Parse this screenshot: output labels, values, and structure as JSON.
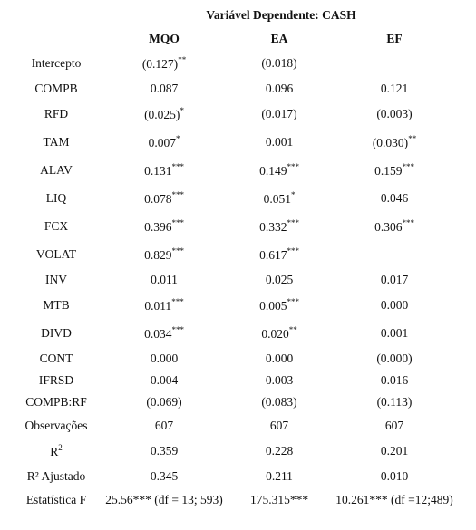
{
  "table": {
    "title": "Variável Dependente: CASH",
    "columns": [
      "MQO",
      "EA",
      "EF"
    ],
    "rows": [
      {
        "label": "Intercepto",
        "cells": [
          {
            "text": "(0.127)",
            "sup": "**"
          },
          "(0.018)",
          null
        ]
      },
      {
        "label": "COMPB",
        "cells": [
          "0.087",
          "0.096",
          "0.121"
        ]
      },
      {
        "label": "RFD",
        "cells": [
          {
            "text": "(0.025)",
            "sup": "*"
          },
          "(0.017)",
          "(0.003)"
        ]
      },
      {
        "label": "TAM",
        "cells": [
          {
            "text": "0.007",
            "sup": "*"
          },
          "0.001",
          {
            "text": "(0.030)",
            "sup": "**"
          }
        ]
      },
      {
        "label": "ALAV",
        "cells": [
          {
            "text": "0.131",
            "sup": "***"
          },
          {
            "text": "0.149",
            "sup": "***"
          },
          {
            "text": "0.159",
            "sup": "***"
          }
        ]
      },
      {
        "label": "LIQ",
        "cells": [
          {
            "text": "0.078",
            "sup": "***"
          },
          {
            "text": "0.051",
            "sup": "*"
          },
          "0.046"
        ]
      },
      {
        "label": "FCX",
        "cells": [
          {
            "text": "0.396",
            "sup": "***"
          },
          {
            "text": "0.332",
            "sup": "***"
          },
          {
            "text": "0.306",
            "sup": "***"
          }
        ]
      },
      {
        "label": "VOLAT",
        "cells": [
          {
            "text": "0.829",
            "sup": "***"
          },
          {
            "text": "0.617",
            "sup": "***"
          },
          null
        ]
      },
      {
        "label": "INV",
        "cells": [
          "0.011",
          "0.025",
          "0.017"
        ]
      },
      {
        "label": "MTB",
        "cells": [
          {
            "text": "0.011",
            "sup": "***"
          },
          {
            "text": "0.005",
            "sup": "***"
          },
          "0.000"
        ]
      },
      {
        "label": "DIVD",
        "cells": [
          {
            "text": "0.034",
            "sup": "***"
          },
          {
            "text": "0.020",
            "sup": "**"
          },
          "0.001"
        ]
      },
      {
        "label": "CONT",
        "cells": [
          "0.000",
          "0.000",
          "(0.000)"
        ]
      },
      {
        "label": "IFRSD",
        "cells": [
          "0.004",
          "0.003",
          "0.016"
        ]
      },
      {
        "label": "COMPB:RF",
        "cells": [
          "(0.069)",
          "(0.083)",
          "(0.113)"
        ]
      },
      {
        "label": "Observações",
        "cells": [
          "607",
          "607",
          "607"
        ]
      },
      {
        "label": {
          "text": "R",
          "sup": "2"
        },
        "cells": [
          "0.359",
          "0.228",
          "0.201"
        ]
      },
      {
        "label": "R² Ajustado",
        "cells": [
          "0.345",
          "0.211",
          "0.010"
        ]
      },
      {
        "label": "Estatística F",
        "cells": [
          "25.56*** (df = 13; 593)",
          "175.315***",
          "10.261*** (df =12;489)"
        ]
      }
    ]
  }
}
